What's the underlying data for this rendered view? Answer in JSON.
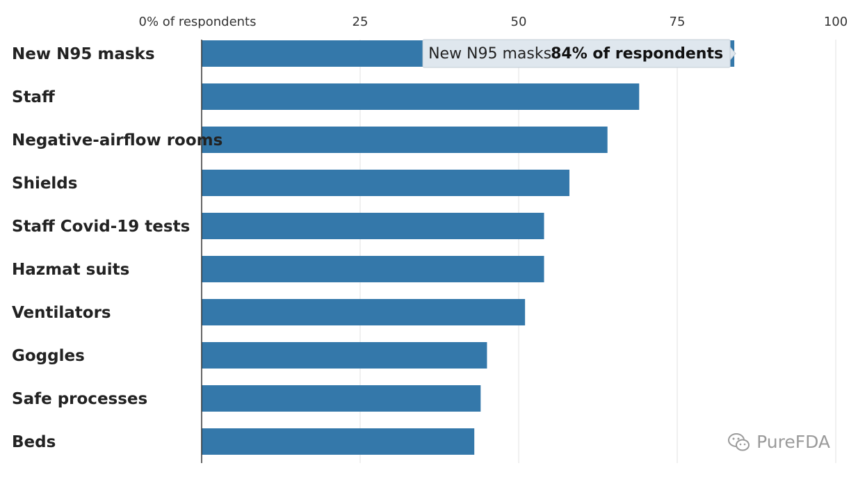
{
  "chart_data": {
    "type": "bar",
    "orientation": "horizontal",
    "categories": [
      "New N95 masks",
      "Staff",
      "Negative-airflow rooms",
      "Shields",
      "Staff Covid-19 tests",
      "Hazmat suits",
      "Ventilators",
      "Goggles",
      "Safe processes",
      "Beds"
    ],
    "values": [
      84,
      69,
      64,
      58,
      54,
      54,
      51,
      45,
      44,
      43
    ],
    "unit": "% of respondents",
    "xlim": [
      0,
      100
    ],
    "ticks": [
      {
        "value": 0,
        "label": "0% of respondents"
      },
      {
        "value": 25,
        "label": "25"
      },
      {
        "value": 50,
        "label": "50"
      },
      {
        "value": 75,
        "label": "75"
      },
      {
        "value": 100,
        "label": "100"
      }
    ],
    "grid": true,
    "bar_color": "#3478aa",
    "tooltip": {
      "category": "New N95 masks",
      "value_label": "84% of respondents"
    }
  },
  "watermark": {
    "text": "PureFDA",
    "icon": "wechat-icon"
  }
}
